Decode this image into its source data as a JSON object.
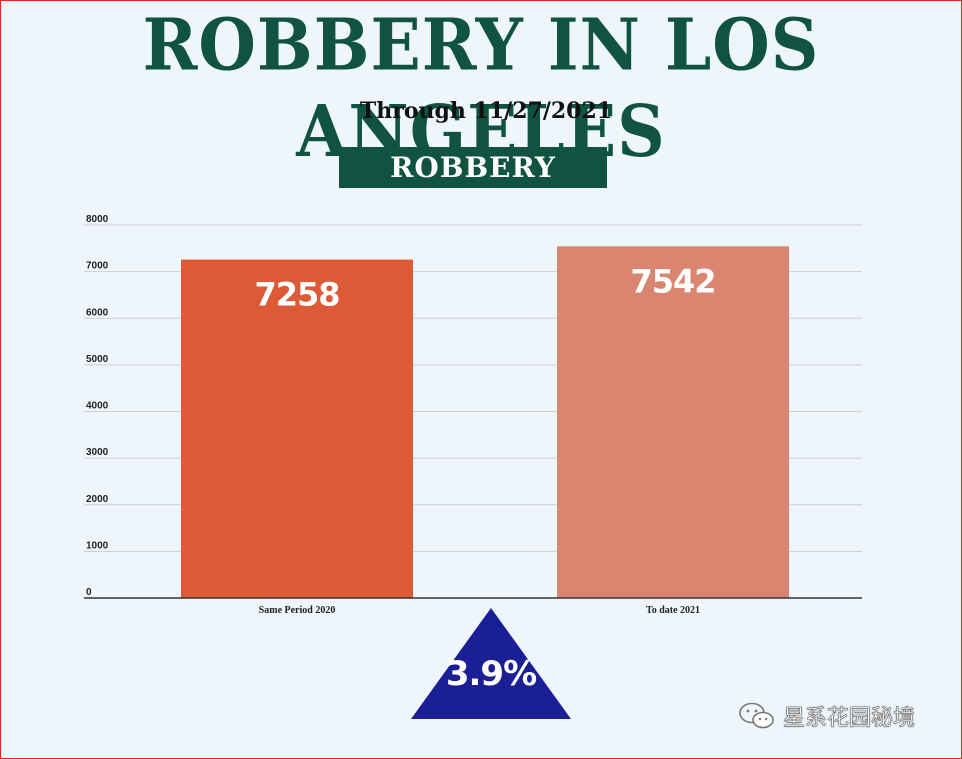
{
  "header": {
    "title": "ROBBERY IN LOS ANGELES",
    "subtitle": "Through 11/27/2021",
    "banner": "ROBBERY"
  },
  "chart_data": {
    "type": "bar",
    "title": "ROBBERY",
    "categories": [
      "Same Period 2020",
      "To date 2021"
    ],
    "values": [
      7258,
      7542
    ],
    "data_labels": [
      "7258",
      "7542"
    ],
    "colors": [
      "#de5a37",
      "#da8570"
    ],
    "ylim": [
      0,
      8000
    ],
    "yticks": [
      0,
      1000,
      2000,
      3000,
      4000,
      5000,
      6000,
      7000,
      8000
    ],
    "grid": true,
    "xlabel": "",
    "ylabel": ""
  },
  "change": {
    "label": "3.9%",
    "direction": "up",
    "color": "#1a1f96"
  },
  "watermark": {
    "text": "星系花园秘境",
    "icon": "wechat-icon"
  }
}
